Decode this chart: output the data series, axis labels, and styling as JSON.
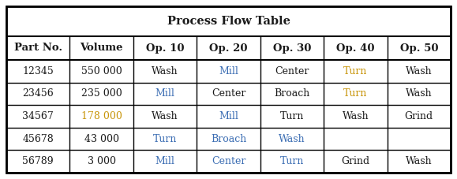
{
  "title": "Process Flow Table",
  "headers": [
    "Part No.",
    "Volume",
    "Op. 10",
    "Op. 20",
    "Op. 30",
    "Op. 40",
    "Op. 50"
  ],
  "rows": [
    [
      "12345",
      "550 000",
      "Wash",
      "Mill",
      "Center",
      "Turn",
      "Wash"
    ],
    [
      "23456",
      "235 000",
      "Mill",
      "Center",
      "Broach",
      "Turn",
      "Wash"
    ],
    [
      "34567",
      "178 000",
      "Wash",
      "Mill",
      "Turn",
      "Wash",
      "Grind"
    ],
    [
      "45678",
      "43 000",
      "Turn",
      "Broach",
      "Wash",
      "",
      ""
    ],
    [
      "56789",
      "3 000",
      "Mill",
      "Center",
      "Turn",
      "Grind",
      "Wash"
    ]
  ],
  "cell_text_colors": [
    [
      "K",
      "K",
      "K",
      "B",
      "K",
      "G",
      "K"
    ],
    [
      "K",
      "K",
      "B",
      "K",
      "K",
      "G",
      "K"
    ],
    [
      "K",
      "G",
      "K",
      "B",
      "K",
      "K",
      "K"
    ],
    [
      "K",
      "K",
      "B",
      "B",
      "B",
      "K",
      "K"
    ],
    [
      "K",
      "K",
      "B",
      "B",
      "B",
      "K",
      "K"
    ]
  ],
  "blue_color": "#3B6DB3",
  "gold_color": "#C8950A",
  "black_color": "#1a1a1a",
  "bg_color": "#ffffff",
  "title_fontsize": 10.5,
  "header_fontsize": 9.5,
  "data_fontsize": 9.0,
  "outer_lw": 1.8,
  "inner_lw": 1.0,
  "title_sep_lw": 1.5,
  "header_sep_lw": 1.5
}
